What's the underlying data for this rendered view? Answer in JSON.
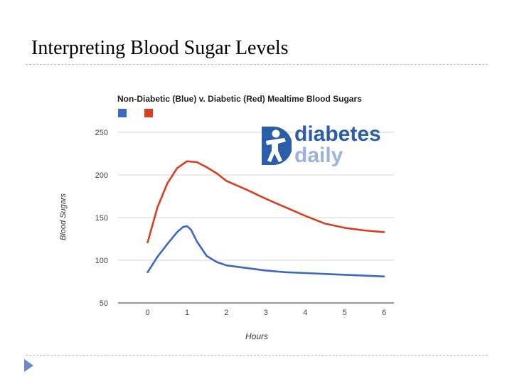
{
  "slide": {
    "title": "Interpreting Blood Sugar Levels"
  },
  "logo": {
    "word1": "diabetes",
    "word2": "daily"
  },
  "chart_data": {
    "type": "line",
    "title": "Non-Diabetic (Blue) v. Diabetic (Red) Mealtime Blood Sugars",
    "xlabel": "Hours",
    "ylabel": "Blood Sugars",
    "xlim": [
      -0.75,
      6.25
    ],
    "ylim": [
      50,
      250
    ],
    "xticks": [
      0,
      1,
      2,
      3,
      4,
      5,
      6
    ],
    "yticks": [
      50,
      100,
      150,
      200,
      250
    ],
    "grid": true,
    "legend_position": "top-left",
    "series": [
      {
        "name": "Non-Diabetic",
        "color": "#3a68c4",
        "x": [
          0,
          0.25,
          0.5,
          0.75,
          0.9,
          1,
          1.1,
          1.25,
          1.5,
          1.75,
          2,
          2.5,
          3,
          3.5,
          4,
          4.5,
          5,
          5.5,
          6
        ],
        "y": [
          86,
          104,
          119,
          133,
          139,
          140,
          136,
          122,
          105,
          98,
          94,
          91,
          88,
          86,
          85,
          84,
          83,
          82,
          81
        ]
      },
      {
        "name": "Diabetic",
        "color": "#db3e1f",
        "x": [
          0,
          0.25,
          0.5,
          0.75,
          1,
          1.25,
          1.5,
          1.75,
          2,
          2.5,
          3,
          3.5,
          4,
          4.5,
          5,
          5.5,
          6
        ],
        "y": [
          121,
          162,
          190,
          208,
          216,
          215,
          209,
          202,
          193,
          183,
          172,
          162,
          152,
          143,
          138,
          135,
          133
        ]
      }
    ]
  }
}
